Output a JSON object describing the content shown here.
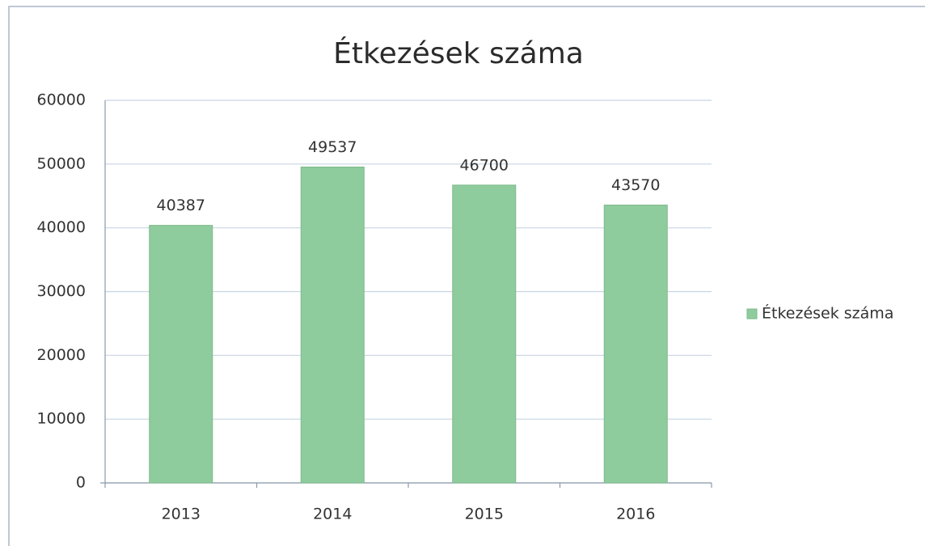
{
  "chart_data": {
    "type": "bar",
    "title": "Étkezések száma",
    "categories": [
      "2013",
      "2014",
      "2015",
      "2016"
    ],
    "series": [
      {
        "name": "Étkezések száma",
        "color": "#8fcc9d",
        "values": [
          40387,
          49537,
          46700,
          43570
        ]
      }
    ],
    "ylim": [
      0,
      60000
    ],
    "yticks": [
      0,
      10000,
      20000,
      30000,
      40000,
      50000,
      60000
    ],
    "grid": true,
    "legend": "right",
    "data_labels": true
  }
}
